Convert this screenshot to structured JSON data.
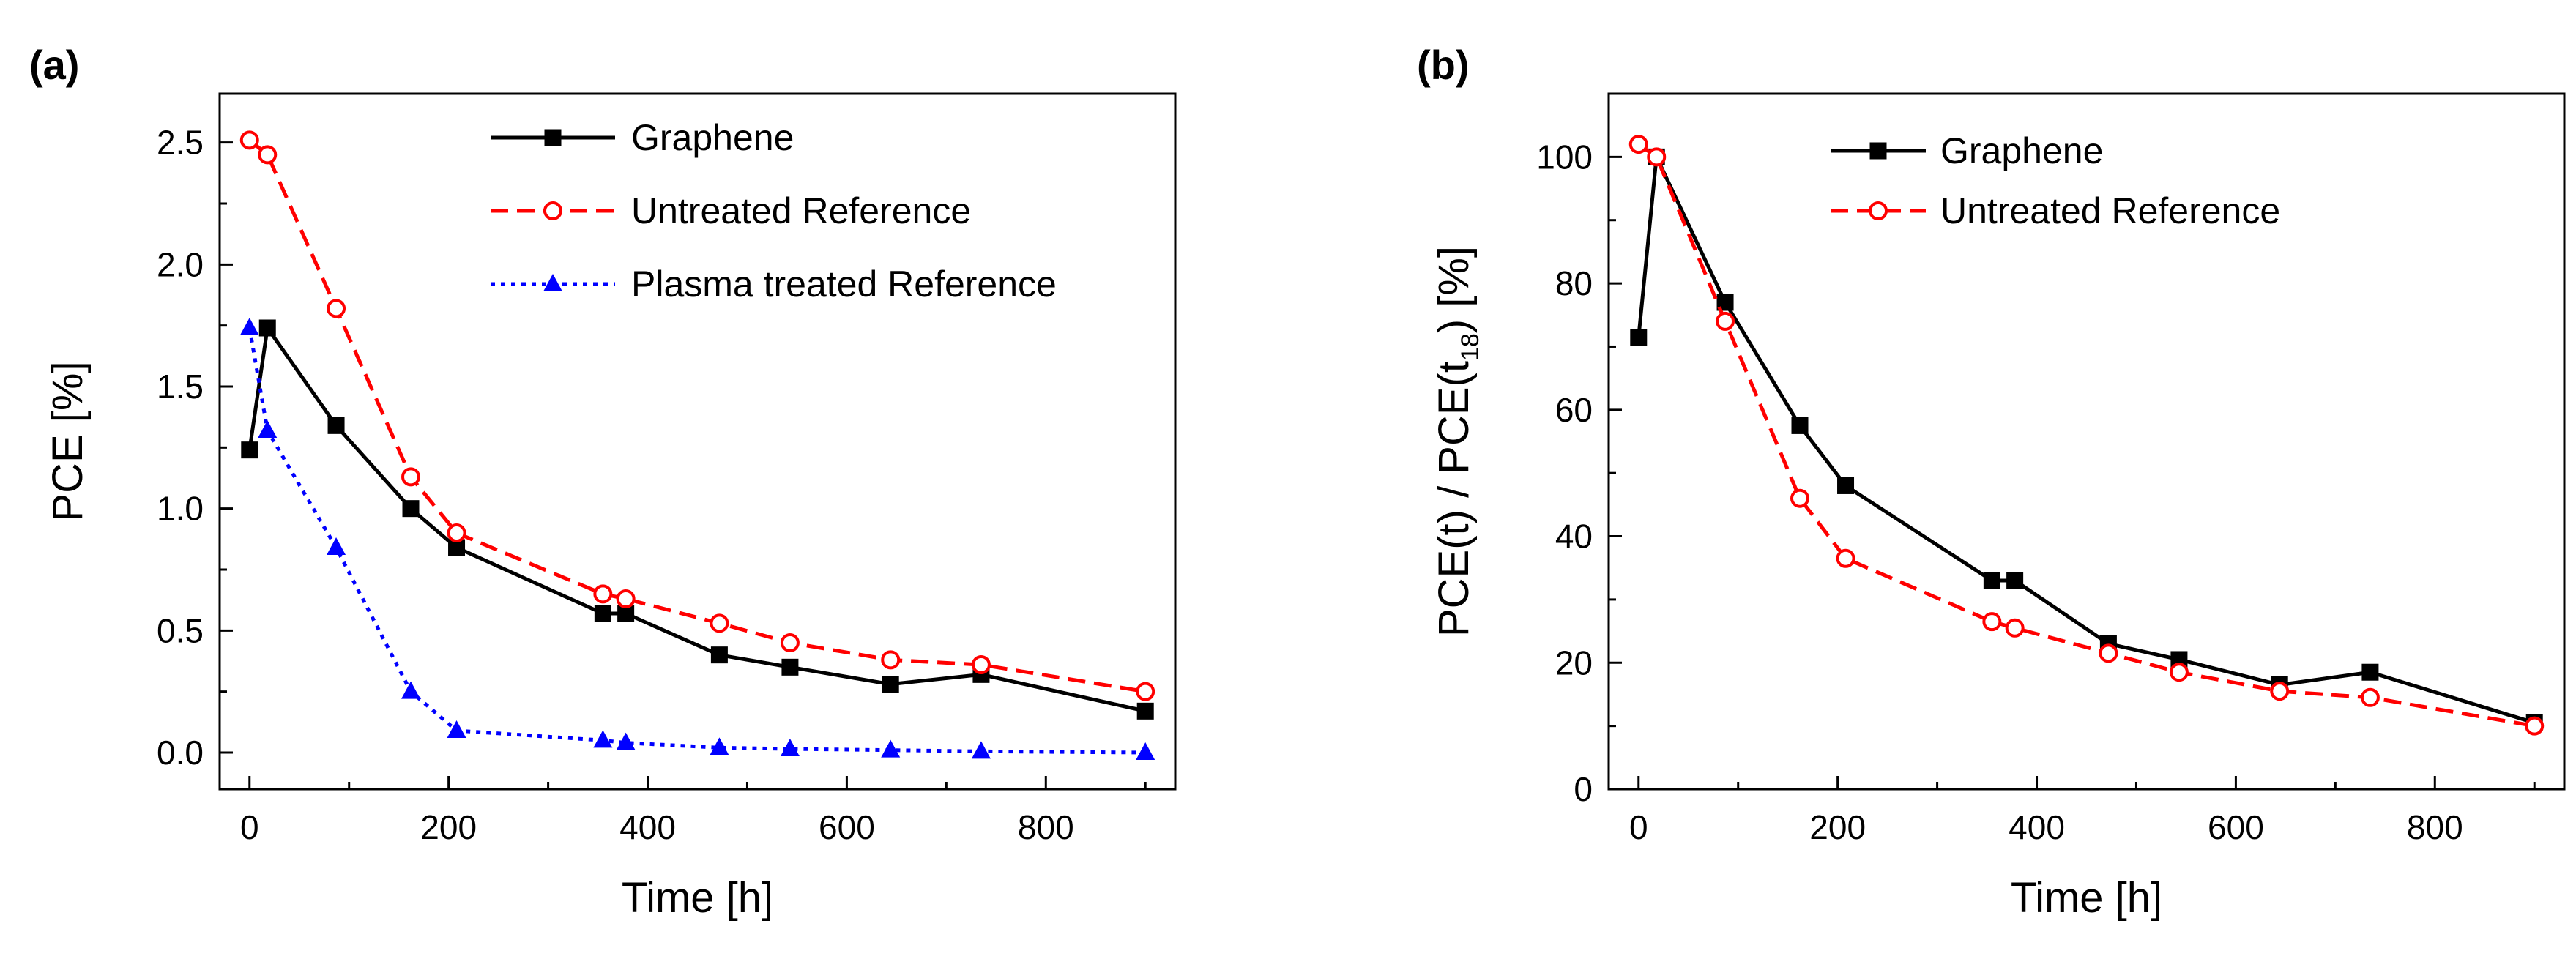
{
  "chart_data": [
    {
      "panel_label": "(a)",
      "type": "line",
      "xlabel": "Time [h]",
      "ylabel": "PCE [%]",
      "xlim": [
        -30,
        930
      ],
      "ylim": [
        -0.15,
        2.7
      ],
      "xticks": [
        0,
        200,
        400,
        600,
        800
      ],
      "xtick_labels": [
        "0",
        "200",
        "400",
        "600",
        "800"
      ],
      "yticks": [
        0.0,
        0.5,
        1.0,
        1.5,
        2.0,
        2.5
      ],
      "ytick_labels": [
        "0.0",
        "0.5",
        "1.0",
        "1.5",
        "2.0",
        "2.5"
      ],
      "legend_position": "top-right",
      "series": [
        {
          "name": "Graphene",
          "color": "#000000",
          "dash": "solid",
          "marker": "square-filled",
          "x": [
            0,
            18,
            87,
            162,
            208,
            355,
            378,
            472,
            543,
            644,
            735,
            900
          ],
          "y": [
            1.24,
            1.74,
            1.34,
            1.0,
            0.84,
            0.57,
            0.57,
            0.4,
            0.35,
            0.28,
            0.32,
            0.17
          ]
        },
        {
          "name": "Untreated Reference",
          "color": "#ff0000",
          "dash": "dashed",
          "marker": "circle-open",
          "x": [
            0,
            18,
            87,
            162,
            208,
            355,
            378,
            472,
            543,
            644,
            735,
            900
          ],
          "y": [
            2.51,
            2.45,
            1.82,
            1.13,
            0.9,
            0.65,
            0.63,
            0.53,
            0.45,
            0.38,
            0.36,
            0.25
          ]
        },
        {
          "name": "Plasma treated Reference",
          "color": "#0000ff",
          "dash": "dotted",
          "marker": "triangle-filled",
          "x": [
            0,
            18,
            87,
            162,
            208,
            355,
            378,
            472,
            543,
            644,
            735,
            900
          ],
          "y": [
            1.74,
            1.32,
            0.84,
            0.25,
            0.09,
            0.05,
            0.04,
            0.02,
            0.015,
            0.01,
            0.005,
            0.0
          ]
        }
      ]
    },
    {
      "panel_label": "(b)",
      "type": "line",
      "xlabel": "Time [h]",
      "ylabel": "PCE(t) / PCE(t",
      "ylabel_sub": "18",
      "ylabel_end": ") [%]",
      "xlim": [
        -30,
        930
      ],
      "ylim": [
        0,
        110
      ],
      "xticks": [
        0,
        200,
        400,
        600,
        800
      ],
      "xtick_labels": [
        "0",
        "200",
        "400",
        "600",
        "800"
      ],
      "yticks": [
        0,
        20,
        40,
        60,
        80,
        100
      ],
      "ytick_labels": [
        "0",
        "20",
        "40",
        "60",
        "80",
        "100"
      ],
      "legend_position": "top-right",
      "series": [
        {
          "name": "Graphene",
          "color": "#000000",
          "dash": "solid",
          "marker": "square-filled",
          "x": [
            0,
            18,
            87,
            162,
            208,
            355,
            378,
            472,
            543,
            644,
            735,
            900
          ],
          "y": [
            71.5,
            100,
            77,
            57.5,
            48,
            33,
            33,
            23,
            20.5,
            16.5,
            18.5,
            10.5
          ]
        },
        {
          "name": "Untreated Reference",
          "color": "#ff0000",
          "dash": "dashed",
          "marker": "circle-open",
          "x": [
            0,
            18,
            87,
            162,
            208,
            355,
            378,
            472,
            543,
            644,
            735,
            900
          ],
          "y": [
            102,
            100,
            74,
            46,
            36.5,
            26.5,
            25.5,
            21.5,
            18.5,
            15.5,
            14.5,
            10
          ]
        }
      ]
    }
  ]
}
